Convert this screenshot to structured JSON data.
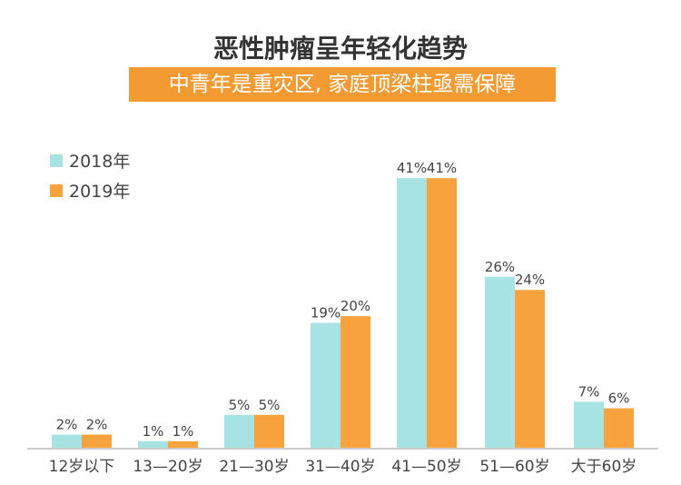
{
  "chart_data": {
    "type": "bar",
    "title": "恶性肿瘤呈年轻化趋势",
    "subtitle": "中青年是重灾区, 家庭顶梁柱亟需保障",
    "categories": [
      "12岁以下",
      "13—20岁",
      "21—30岁",
      "31—40岁",
      "41—50岁",
      "51—60岁",
      "大于60岁"
    ],
    "series": [
      {
        "name": "2018年",
        "color": "#a8e3e3",
        "values": [
          2,
          1,
          5,
          19,
          41,
          26,
          7
        ]
      },
      {
        "name": "2019年",
        "color": "#f7a23c",
        "values": [
          2,
          1,
          5,
          20,
          41,
          24,
          6
        ]
      }
    ],
    "value_suffix": "%",
    "ylim": [
      0,
      45
    ],
    "grid": false,
    "legend": "top-left"
  }
}
